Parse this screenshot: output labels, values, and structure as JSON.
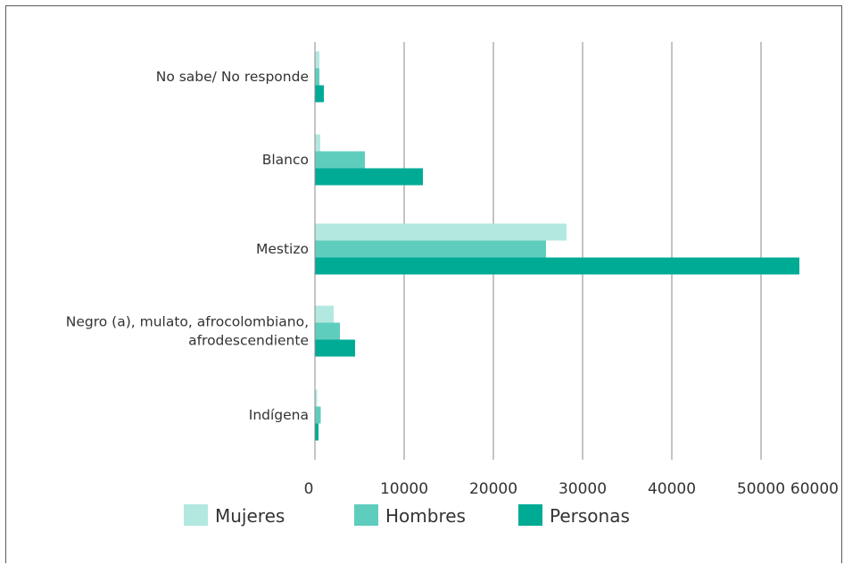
{
  "chart_data": {
    "type": "bar",
    "orientation": "horizontal",
    "categories": [
      [
        "No sabe/ No responde"
      ],
      [
        "Blanco"
      ],
      [
        "Mestizo"
      ],
      [
        "Negro (a), mulato, afrocolombiano,",
        "afrodescendiente"
      ],
      [
        "Indígena"
      ]
    ],
    "series": [
      {
        "name": "Mujeres",
        "color": "#b3e8e0",
        "values": [
          500,
          600,
          28200,
          2100,
          250
        ]
      },
      {
        "name": "Hombres",
        "color": "#5fcdbd",
        "values": [
          500,
          5600,
          25900,
          2800,
          650
        ]
      },
      {
        "name": "Personas",
        "color": "#00ab96",
        "values": [
          1000,
          12100,
          54300,
          4500,
          400
        ]
      }
    ],
    "x_ticks": [
      "0",
      "10000",
      "20000",
      "30000",
      "40000",
      "50000",
      "60000"
    ],
    "xlim": [
      0,
      60000
    ],
    "grid": true,
    "legend": "bottom"
  }
}
